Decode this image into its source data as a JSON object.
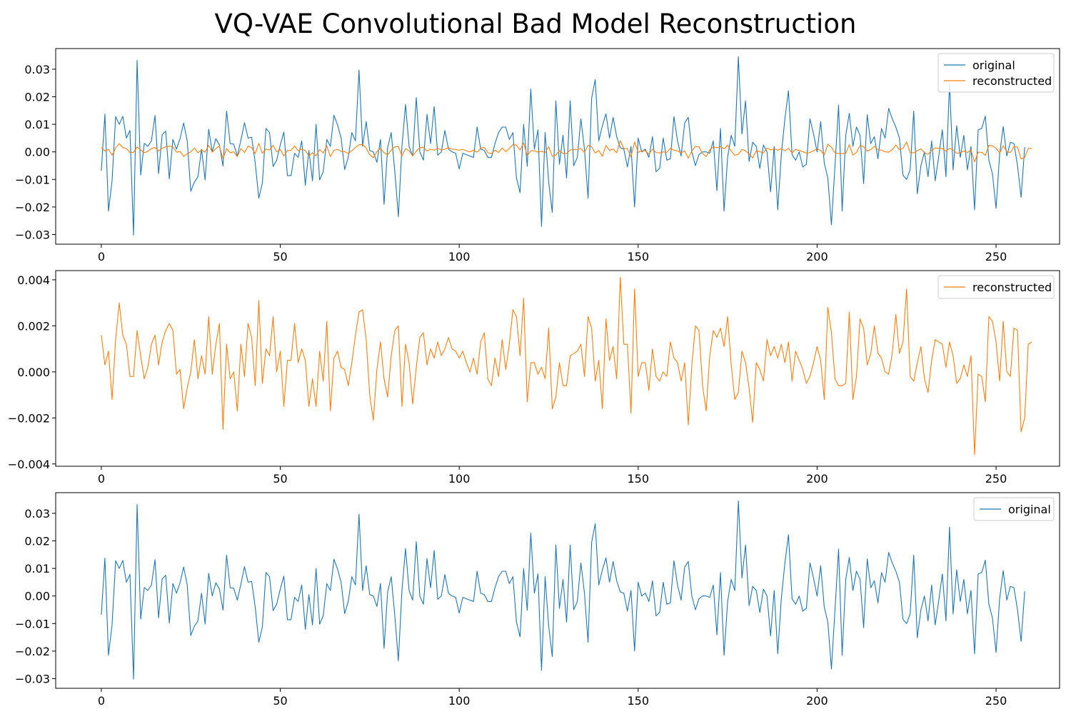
{
  "figure": {
    "title": "VQ-VAE Convolutional Bad Model Reconstruction"
  },
  "colors": {
    "original": "#1f77b4",
    "reconstructed": "#ff7f0e",
    "axes": "#000000",
    "background": "#ffffff"
  },
  "chart_data": [
    {
      "type": "line",
      "title": "",
      "xlabel": "",
      "ylabel": "",
      "xlim": [
        -12.75,
        267.75
      ],
      "ylim": [
        -0.0335,
        0.0375
      ],
      "xticks": [
        0,
        50,
        100,
        150,
        200,
        250
      ],
      "yticks": [
        -0.03,
        -0.02,
        -0.01,
        0.0,
        0.01,
        0.02,
        0.03
      ],
      "ytick_labels": [
        "−0.03",
        "−0.02",
        "−0.01",
        "0.00",
        "0.01",
        "0.02",
        "0.03"
      ],
      "grid": false,
      "legend": "top-right",
      "series_refs": [
        "original",
        "reconstructed"
      ]
    },
    {
      "type": "line",
      "title": "",
      "xlabel": "",
      "ylabel": "",
      "xlim": [
        -12.75,
        267.75
      ],
      "ylim": [
        -0.0041,
        0.0044
      ],
      "xticks": [
        0,
        50,
        100,
        150,
        200,
        250
      ],
      "yticks": [
        -0.004,
        -0.002,
        0.0,
        0.002,
        0.004
      ],
      "ytick_labels": [
        "−0.004",
        "−0.002",
        "0.000",
        "0.002",
        "0.004"
      ],
      "grid": false,
      "legend": "top-right",
      "series_refs": [
        "reconstructed"
      ]
    },
    {
      "type": "line",
      "title": "",
      "xlabel": "",
      "ylabel": "",
      "xlim": [
        -12.75,
        267.75
      ],
      "ylim": [
        -0.0335,
        0.0375
      ],
      "xticks": [
        0,
        50,
        100,
        150,
        200,
        250
      ],
      "yticks": [
        -0.03,
        -0.02,
        -0.01,
        0.0,
        0.01,
        0.02,
        0.03
      ],
      "ytick_labels": [
        "−0.03",
        "−0.02",
        "−0.01",
        "0.00",
        "0.01",
        "0.02",
        "0.03"
      ],
      "grid": false,
      "legend": "top-right",
      "series_refs": [
        "original"
      ]
    }
  ],
  "series": {
    "original": {
      "name": "original",
      "color": "#1f77b4",
      "x_start": 0,
      "x_step": 1,
      "values": [
        -0.0068,
        0.0137,
        -0.0215,
        -0.0105,
        0.0128,
        0.01,
        0.0129,
        0.005,
        0.0078,
        -0.0302,
        0.0332,
        -0.0084,
        0.0031,
        0.002,
        0.004,
        0.0132,
        -0.0079,
        0.0062,
        0.0075,
        -0.0098,
        0.0045,
        0.001,
        0.0048,
        0.0105,
        0.004,
        -0.0143,
        -0.011,
        -0.009,
        0.001,
        -0.0102,
        0.0082,
        0.0,
        0.0048,
        0.0025,
        -0.0051,
        0.0148,
        0.003,
        0.0028,
        -0.0015,
        0.0043,
        0.0106,
        0.005,
        0.0053,
        -0.004,
        -0.0168,
        -0.0113,
        0.0085,
        0.007,
        -0.0053,
        -0.003,
        0.0025,
        0.0072,
        -0.0086,
        -0.0086,
        -0.0005,
        -0.002,
        0.004,
        -0.0121,
        0.0005,
        -0.0105,
        0.01,
        -0.0102,
        -0.0072,
        0.0045,
        0.002,
        0.0133,
        0.0098,
        0.005,
        -0.0064,
        -0.002,
        0.007,
        0.004,
        0.0297,
        0.002,
        0.011,
        0.0005,
        0.0,
        -0.0038,
        0.0045,
        -0.019,
        0.0015,
        0.007,
        -0.007,
        -0.0235,
        0.002,
        0.0172,
        0.002,
        -0.0015,
        0.0197,
        0.0,
        -0.003,
        0.0136,
        0.003,
        0.0165,
        -0.0012,
        0.0,
        0.0078,
        0.001,
        0.0,
        -0.0005,
        -0.0062,
        -0.0005,
        -0.001,
        -0.0015,
        -0.002,
        0.009,
        0.001,
        0.0005,
        -0.002,
        -0.002,
        0.003,
        0.007,
        0.009,
        0.009,
        0.0045,
        0.007,
        -0.0095,
        -0.0148,
        0.01,
        -0.0052,
        0.0228,
        0.001,
        0.008,
        -0.027,
        0.007,
        -0.011,
        -0.022,
        0.0185,
        -0.0045,
        0.006,
        -0.0095,
        0.0185,
        -0.005,
        -0.002,
        0.012,
        0.001,
        -0.0168,
        0.0195,
        0.0262,
        0.004,
        0.0095,
        0.0138,
        0.005,
        0.0125,
        0.0055,
        0.0015,
        0.001,
        -0.0055,
        0.002,
        -0.02,
        0.005,
        0.0,
        0.001,
        -0.002,
        0.0055,
        -0.0072,
        -0.006,
        0.005,
        -0.003,
        -0.0025,
        0.0128,
        0.004,
        -0.0015,
        0.0105,
        0.0125,
        0.0,
        -0.005,
        -0.001,
        0.0,
        0.0,
        -0.0005,
        0.004,
        -0.0141,
        0.0085,
        -0.0215,
        -0.002,
        0.006,
        0.002,
        0.0345,
        0.0065,
        0.0185,
        -0.0035,
        0.0035,
        0.002,
        -0.006,
        0.0025,
        0.0,
        -0.0145,
        0.002,
        -0.021,
        -0.001,
        0.012,
        0.0222,
        -0.001,
        -0.003,
        0.0,
        -0.0055,
        -0.0045,
        0.012,
        0.0065,
        0.0,
        0.011,
        -0.004,
        -0.0095,
        -0.0265,
        -0.005,
        0.017,
        -0.0215,
        0.006,
        0.014,
        0.002,
        0.009,
        0.006,
        -0.0115,
        0.0135,
        0.003,
        0.0055,
        -0.0025,
        0.0085,
        0.005,
        0.0158,
        0.012,
        0.009,
        0.005,
        -0.0085,
        -0.01,
        -0.0065,
        0.0148,
        -0.0152,
        -0.005,
        0.0,
        -0.009,
        0.004,
        -0.0105,
        -0.0015,
        0.008,
        -0.009,
        0.025,
        -0.0065,
        0.0095,
        -0.002,
        0.006,
        -0.0065,
        0.002,
        -0.021,
        0.008,
        0.0085,
        0.013,
        -0.003,
        -0.008,
        -0.0205,
        -0.001,
        0.0092,
        -0.0015,
        0.0035,
        0.003,
        -0.005,
        -0.0165,
        0.0017
      ]
    },
    "reconstructed": {
      "name": "reconstructed",
      "color": "#ff7f0e",
      "x_start": 0,
      "x_step": 1,
      "values": [
        0.0016,
        0.0003,
        0.0009,
        -0.0012,
        0.0014,
        0.003,
        0.0016,
        0.0012,
        -0.0002,
        -0.0002,
        0.0018,
        0.0007,
        -0.0003,
        0.0002,
        0.0012,
        0.0016,
        0.0003,
        0.0013,
        0.0018,
        0.0021,
        0.0018,
        -0.0001,
        0.0001,
        -0.0016,
        -0.0007,
        0.0,
        0.0014,
        -0.0003,
        0.0007,
        -0.0001,
        0.0024,
        -0.0001,
        0.0012,
        0.0021,
        -0.0025,
        0.0012,
        -0.0003,
        0.0,
        -0.0017,
        0.0012,
        -0.0002,
        0.0021,
        0.0015,
        -0.0006,
        0.0031,
        -0.0005,
        0.001,
        0.0007,
        0.0024,
        0.0,
        0.0009,
        -0.0015,
        0.0005,
        0.0005,
        0.0021,
        0.0004,
        0.001,
        0.0005,
        -0.0015,
        -0.0003,
        -0.0015,
        0.0009,
        -0.0004,
        0.0022,
        -0.0017,
        0.0006,
        0.0009,
        0.0002,
        0.0001,
        -0.0006,
        0.0004,
        0.0016,
        0.0026,
        0.0027,
        0.0014,
        -0.001,
        -0.0021,
        0.0001,
        0.0013,
        -0.0003,
        -0.0011,
        0.0007,
        0.0018,
        0.002,
        -0.0015,
        0.0012,
        0.0004,
        -0.0014,
        0.0002,
        0.0015,
        0.0017,
        0.0003,
        0.001,
        0.0006,
        0.0013,
        0.0007,
        0.001,
        0.0015,
        0.001,
        0.0009,
        0.0006,
        0.0009,
        0.0004,
        0.0,
        0.0006,
        -0.0001,
        0.0013,
        0.0017,
        -0.0003,
        -0.0006,
        0.0006,
        -0.0002,
        0.0014,
        0.0001,
        0.0012,
        0.0027,
        0.0024,
        0.0007,
        0.0032,
        -0.0013,
        0.0004,
        0.0004,
        -0.0001,
        0.0002,
        -0.0003,
        0.0019,
        -0.0016,
        -0.0011,
        0.0004,
        -0.0006,
        -0.0006,
        0.0007,
        0.0008,
        0.0009,
        0.0012,
        -0.0002,
        0.0024,
        0.0019,
        -0.0004,
        0.0005,
        -0.0016,
        0.0023,
        0.0005,
        0.0011,
        -0.0003,
        0.0041,
        0.0012,
        0.0012,
        -0.0018,
        0.0036,
        -0.0002,
        0.0004,
        0.0004,
        -0.0008,
        0.001,
        -0.0002,
        -0.0004,
        0.0,
        -0.0002,
        0.0013,
        0.0006,
        0.0004,
        -0.0004,
        0.0004,
        -0.0023,
        0.0003,
        0.002,
        0.0018,
        -0.0006,
        -0.0017,
        0.0007,
        0.0018,
        0.0015,
        0.0019,
        0.0011,
        0.0024,
        0.0003,
        -0.0012,
        -0.0009,
        0.0009,
        0.0004,
        -0.0007,
        -0.0022,
        0.0004,
        0.0001,
        -0.0004,
        0.0014,
        0.0007,
        0.0011,
        0.0006,
        0.0012,
        0.0004,
        0.0013,
        -0.0004,
        0.0009,
        0.0005,
        0.0001,
        -0.0005,
        -0.0002,
        0.0004,
        0.0011,
        0.0005,
        -0.0012,
        0.0028,
        0.0017,
        -0.0003,
        -0.0006,
        -0.0006,
        -0.0005,
        0.0026,
        -0.0012,
        -0.0002,
        0.0023,
        0.0019,
        0.0003,
        0.0008,
        0.002,
        0.0008,
        0.0006,
        0.0,
        -0.0001,
        0.0008,
        0.0025,
        0.0008,
        0.0013,
        0.0036,
        -0.0002,
        -0.0004,
        0.0004,
        0.0011,
        -0.0003,
        -0.0009,
        0.0005,
        0.0014,
        0.0013,
        0.0012,
        0.0002,
        0.0013,
        0.0007,
        -0.0005,
        -0.0003,
        0.0003,
        -0.0002,
        0.0007,
        -0.0036,
        -0.0001,
        -0.0002,
        -0.0013,
        0.0024,
        0.0022,
        0.0013,
        -0.0004,
        0.0022,
        0.0,
        -0.0002,
        0.0019,
        0.0018,
        -0.0026,
        -0.002,
        0.0012,
        0.0013
      ]
    }
  }
}
